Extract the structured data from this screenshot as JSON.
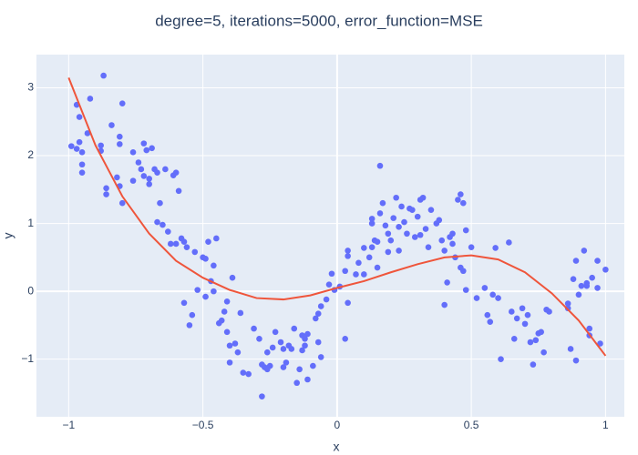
{
  "chart_data": {
    "type": "scatter",
    "title": "degree=5, iterations=5000, error_function=MSE",
    "x_label": "x",
    "y_label": "y",
    "xlim": [
      -1.12,
      1.07
    ],
    "ylim": [
      -1.85,
      3.49
    ],
    "xticks": [
      {
        "value": -1,
        "label": "−1"
      },
      {
        "value": -0.5,
        "label": "−0.5"
      },
      0,
      0.5,
      1
    ],
    "yticks": [
      {
        "value": -1,
        "label": "−1"
      },
      0,
      1,
      2,
      3
    ],
    "grid": true,
    "series": [
      {
        "type": "scatter",
        "color": "#636efa",
        "x": [
          -0.99,
          -0.97,
          -0.97,
          -0.96,
          -0.96,
          -0.95,
          -0.95,
          -0.95,
          -0.93,
          -0.92,
          -0.88,
          -0.88,
          -0.87,
          -0.86,
          -0.86,
          -0.84,
          -0.82,
          -0.81,
          -0.81,
          -0.81,
          -0.8,
          -0.8,
          -0.76,
          -0.76,
          -0.74,
          -0.73,
          -0.72,
          -0.72,
          -0.71,
          -0.7,
          -0.7,
          -0.69,
          -0.68,
          -0.67,
          -0.67,
          -0.66,
          -0.65,
          -0.64,
          -0.63,
          -0.62,
          -0.61,
          -0.6,
          -0.59,
          -0.6,
          -0.58,
          -0.57,
          -0.56,
          -0.57,
          -0.55,
          -0.54,
          -0.53,
          -0.52,
          -0.5,
          -0.49,
          -0.49,
          -0.48,
          -0.47,
          -0.46,
          -0.46,
          -0.45,
          -0.44,
          -0.43,
          -0.42,
          -0.41,
          -0.41,
          -0.4,
          -0.4,
          -0.39,
          -0.38,
          -0.37,
          -0.36,
          -0.35,
          -0.33,
          -0.31,
          -0.29,
          -0.28,
          -0.28,
          -0.27,
          -0.26,
          -0.26,
          -0.25,
          -0.24,
          -0.23,
          -0.21,
          -0.2,
          -0.2,
          -0.19,
          -0.18,
          -0.17,
          -0.16,
          -0.15,
          -0.14,
          -0.13,
          -0.13,
          -0.12,
          -0.12,
          -0.11,
          -0.11,
          -0.09,
          -0.08,
          -0.07,
          -0.07,
          -0.06,
          -0.06,
          -0.04,
          -0.03,
          -0.02,
          -0.01,
          0.01,
          0.03,
          0.03,
          0.04,
          0.04,
          0.04,
          0.07,
          0.08,
          0.1,
          0.1,
          0.12,
          0.13,
          0.13,
          0.13,
          0.14,
          0.15,
          0.15,
          0.16,
          0.16,
          0.17,
          0.18,
          0.19,
          0.19,
          0.2,
          0.21,
          0.22,
          0.23,
          0.23,
          0.24,
          0.25,
          0.26,
          0.27,
          0.28,
          0.29,
          0.3,
          0.31,
          0.31,
          0.32,
          0.33,
          0.34,
          0.35,
          0.37,
          0.38,
          0.39,
          0.4,
          0.4,
          0.41,
          0.42,
          0.43,
          0.43,
          0.44,
          0.45,
          0.46,
          0.46,
          0.47,
          0.47,
          0.48,
          0.48,
          0.5,
          0.52,
          0.55,
          0.56,
          0.57,
          0.58,
          0.59,
          0.6,
          0.61,
          0.64,
          0.65,
          0.66,
          0.67,
          0.69,
          0.7,
          0.71,
          0.72,
          0.73,
          0.74,
          0.75,
          0.76,
          0.77,
          0.78,
          0.79,
          0.86,
          0.86,
          0.87,
          0.88,
          0.89,
          0.89,
          0.9,
          0.91,
          0.92,
          0.93,
          0.93,
          0.94,
          0.94,
          0.95,
          0.97,
          0.97,
          0.98,
          1.0
        ],
        "values": [
          2.14,
          2.1,
          2.75,
          2.2,
          2.57,
          1.75,
          1.87,
          2.05,
          2.33,
          2.84,
          2.07,
          2.15,
          3.18,
          1.52,
          1.43,
          2.45,
          1.68,
          1.55,
          2.28,
          2.17,
          2.77,
          1.3,
          1.63,
          2.05,
          1.9,
          1.8,
          1.7,
          2.18,
          2.08,
          1.66,
          1.58,
          2.11,
          1.8,
          1.75,
          1.02,
          1.3,
          0.98,
          1.8,
          0.88,
          0.7,
          1.71,
          1.75,
          1.48,
          0.7,
          0.78,
          0.73,
          0.65,
          -0.17,
          -0.5,
          -0.35,
          0.58,
          0.02,
          0.5,
          0.48,
          -0.08,
          0.73,
          0.15,
          0.38,
          0.0,
          0.78,
          -0.47,
          -0.43,
          -0.3,
          -0.15,
          -0.6,
          -1.05,
          -0.8,
          0.2,
          -0.77,
          -0.9,
          -0.32,
          -1.2,
          -1.22,
          -0.55,
          -0.7,
          -1.55,
          -1.08,
          -1.12,
          -1.15,
          -0.9,
          -1.1,
          -0.83,
          -0.6,
          -0.75,
          -0.85,
          -1.12,
          -1.05,
          -0.8,
          -0.85,
          -0.55,
          -1.35,
          -1.15,
          -0.65,
          -0.87,
          -0.7,
          -0.8,
          -0.63,
          -1.3,
          -1.1,
          -0.4,
          -0.33,
          -0.75,
          -0.97,
          -0.22,
          -0.12,
          0.1,
          0.26,
          0.02,
          0.07,
          0.3,
          -0.7,
          -0.17,
          0.6,
          0.52,
          0.25,
          0.42,
          0.25,
          0.64,
          0.5,
          0.65,
          1.0,
          1.07,
          0.75,
          0.35,
          0.73,
          1.15,
          1.85,
          1.3,
          0.97,
          0.58,
          0.85,
          0.75,
          1.08,
          1.38,
          0.95,
          0.6,
          1.25,
          1.02,
          0.85,
          1.22,
          1.2,
          0.8,
          1.1,
          0.83,
          1.35,
          1.38,
          0.92,
          0.65,
          1.2,
          1.0,
          1.05,
          0.75,
          -0.2,
          0.6,
          0.13,
          0.8,
          0.7,
          0.85,
          0.5,
          1.35,
          0.35,
          1.43,
          1.3,
          0.3,
          0.9,
          0.02,
          0.65,
          -0.1,
          0.05,
          -0.35,
          -0.45,
          -0.05,
          0.64,
          -0.1,
          -1.0,
          0.72,
          -0.3,
          -0.7,
          -0.4,
          -0.25,
          -0.48,
          -0.35,
          -0.75,
          -1.08,
          -0.72,
          -0.62,
          -0.6,
          -0.9,
          -0.27,
          -0.3,
          -0.18,
          -0.25,
          -0.85,
          0.18,
          -1.02,
          0.45,
          -0.05,
          0.08,
          0.6,
          0.12,
          0.08,
          -0.55,
          -0.65,
          0.2,
          0.05,
          0.45,
          -0.77,
          0.32
        ]
      },
      {
        "type": "line",
        "color": "#ef553b",
        "x": [
          -1,
          -0.9,
          -0.8,
          -0.7,
          -0.6,
          -0.5,
          -0.4,
          -0.3,
          -0.2,
          -0.1,
          0,
          0.1,
          0.2,
          0.3,
          0.4,
          0.5,
          0.6,
          0.7,
          0.8,
          0.9,
          1
        ],
        "values": [
          3.15,
          2.15,
          1.4,
          0.85,
          0.45,
          0.2,
          0.02,
          -0.1,
          -0.12,
          -0.06,
          0.05,
          0.15,
          0.28,
          0.4,
          0.5,
          0.53,
          0.47,
          0.28,
          -0.03,
          -0.43,
          -0.95
        ]
      }
    ]
  }
}
